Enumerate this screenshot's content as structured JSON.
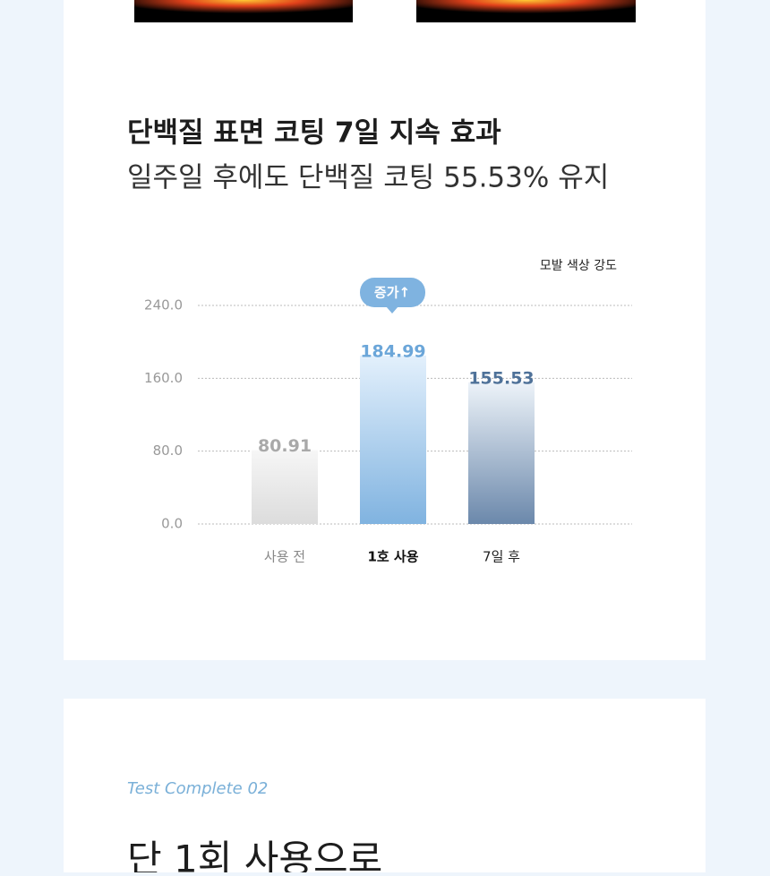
{
  "chart_data": {
    "type": "bar",
    "title": "단백질 표면 코팅 7일 지속 효과",
    "subtitle": "일주일 후에도 단백질 코팅 55.53% 유지",
    "y_label": "모발 색상 강도",
    "annotation": "증가↑",
    "categories": [
      "사용 전",
      "1호 사용",
      "7일 후"
    ],
    "values": [
      80.91,
      184.99,
      155.53
    ],
    "colors": [
      [
        "#f6f6f6",
        "#dcdcdc"
      ],
      [
        "#e3f0fc",
        "#80b3e0"
      ],
      [
        "#edf3f9",
        "#6b88ab"
      ]
    ],
    "label_colors": [
      "#a9a9a9",
      "#6ba6d9",
      "#4f7299"
    ],
    "ylim": [
      0,
      240
    ],
    "yticks": [
      {
        "value": 0,
        "label": "0.0"
      },
      {
        "value": 80,
        "label": "80.0"
      },
      {
        "value": 160,
        "label": "160.0"
      },
      {
        "value": 240,
        "label": "240.0"
      }
    ],
    "grid": true
  },
  "next_section": {
    "eyebrow": "Test Complete 02",
    "heading": "단 1회 사용으로"
  }
}
